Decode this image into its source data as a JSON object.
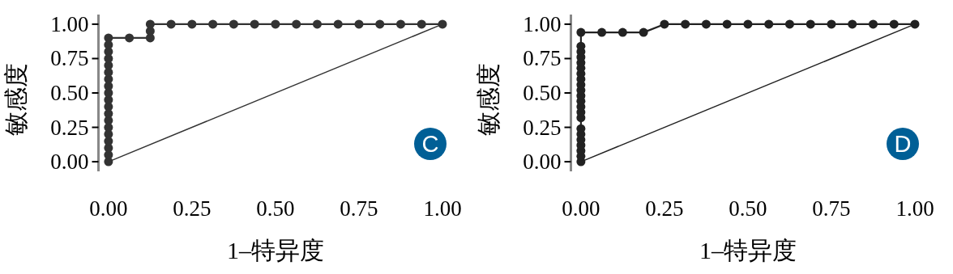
{
  "chart_data": [
    {
      "type": "line",
      "xlabel": "1–特异度",
      "ylabel": "敏感度",
      "xlim": [
        -0.03,
        1
      ],
      "ylim": [
        -0.07,
        1.07
      ],
      "xticks": [
        {
          "value": 0,
          "label": "0.00"
        },
        {
          "value": 0.25,
          "label": "0.25"
        },
        {
          "value": 0.5,
          "label": "0.50"
        },
        {
          "value": 0.75,
          "label": "0.75"
        },
        {
          "value": 1,
          "label": "1.00"
        }
      ],
      "yticks": [
        {
          "value": 0,
          "label": "0.00"
        },
        {
          "value": 0.25,
          "label": "0.25"
        },
        {
          "value": 0.5,
          "label": "0.50"
        },
        {
          "value": 0.75,
          "label": "0.75"
        },
        {
          "value": 1,
          "label": "1.00"
        }
      ],
      "grid": false,
      "marker": "circle",
      "annotations": [
        "C"
      ],
      "series": [
        {
          "color": "#333333",
          "x": [
            0,
            0,
            0,
            0,
            0,
            0,
            0,
            0,
            0,
            0,
            0,
            0,
            0,
            0,
            0,
            0,
            0,
            0,
            0,
            0.0625,
            0.125,
            0.125,
            0.125,
            0.1875,
            0.25,
            0.3125,
            0.375,
            0.4375,
            0.5,
            0.5625,
            0.625,
            0.6875,
            0.75,
            0.8125,
            0.875,
            0.9375,
            1
          ],
          "values": [
            0,
            0.05,
            0.1,
            0.15,
            0.2,
            0.25,
            0.3,
            0.35,
            0.4,
            0.45,
            0.5,
            0.55,
            0.6,
            0.65,
            0.7,
            0.75,
            0.8,
            0.85,
            0.9,
            0.9,
            0.9,
            0.95,
            1,
            1,
            1,
            1,
            1,
            1,
            1,
            1,
            1,
            1,
            1,
            1,
            1,
            1,
            1
          ]
        },
        {
          "color": "#333333",
          "type": "line",
          "marker": "none",
          "x": [
            0,
            1
          ],
          "values": [
            0,
            1
          ]
        }
      ]
    },
    {
      "type": "line",
      "xlabel": "1–特异度",
      "ylabel": "敏感度",
      "xlim": [
        -0.03,
        1
      ],
      "ylim": [
        -0.07,
        1.07
      ],
      "xticks": [
        {
          "value": 0,
          "label": "0.00"
        },
        {
          "value": 0.25,
          "label": "0.25"
        },
        {
          "value": 0.5,
          "label": "0.50"
        },
        {
          "value": 0.75,
          "label": "0.75"
        },
        {
          "value": 1,
          "label": "1.00"
        }
      ],
      "yticks": [
        {
          "value": 0,
          "label": "0.00"
        },
        {
          "value": 0.25,
          "label": "0.25"
        },
        {
          "value": 0.5,
          "label": "0.50"
        },
        {
          "value": 0.75,
          "label": "0.75"
        },
        {
          "value": 1,
          "label": "1.00"
        }
      ],
      "grid": false,
      "marker": "circle",
      "annotations": [
        "D"
      ],
      "series": [
        {
          "color": "#222222",
          "x": [
            0,
            0,
            0,
            0,
            0,
            0,
            0,
            0,
            0,
            0,
            0,
            0,
            0,
            0,
            0,
            0,
            0,
            0,
            0,
            0,
            0,
            0,
            0.0625,
            0.125,
            0.1875,
            0.25,
            0.3125,
            0.375,
            0.4375,
            0.5,
            0.5625,
            0.625,
            0.6875,
            0.75,
            0.8125,
            0.875,
            0.9375,
            1
          ],
          "values": [
            0,
            0.04,
            0.08,
            0.12,
            0.16,
            0.2,
            0.24,
            0.32,
            0.36,
            0.4,
            0.44,
            0.48,
            0.52,
            0.56,
            0.6,
            0.64,
            0.68,
            0.72,
            0.76,
            0.8,
            0.84,
            0.94,
            0.94,
            0.94,
            0.94,
            1,
            1,
            1,
            1,
            1,
            1,
            1,
            1,
            1,
            1,
            1,
            1,
            1
          ]
        },
        {
          "color": "#222222",
          "type": "line",
          "marker": "none",
          "x": [
            0,
            1
          ],
          "values": [
            0,
            1
          ]
        }
      ]
    }
  ]
}
